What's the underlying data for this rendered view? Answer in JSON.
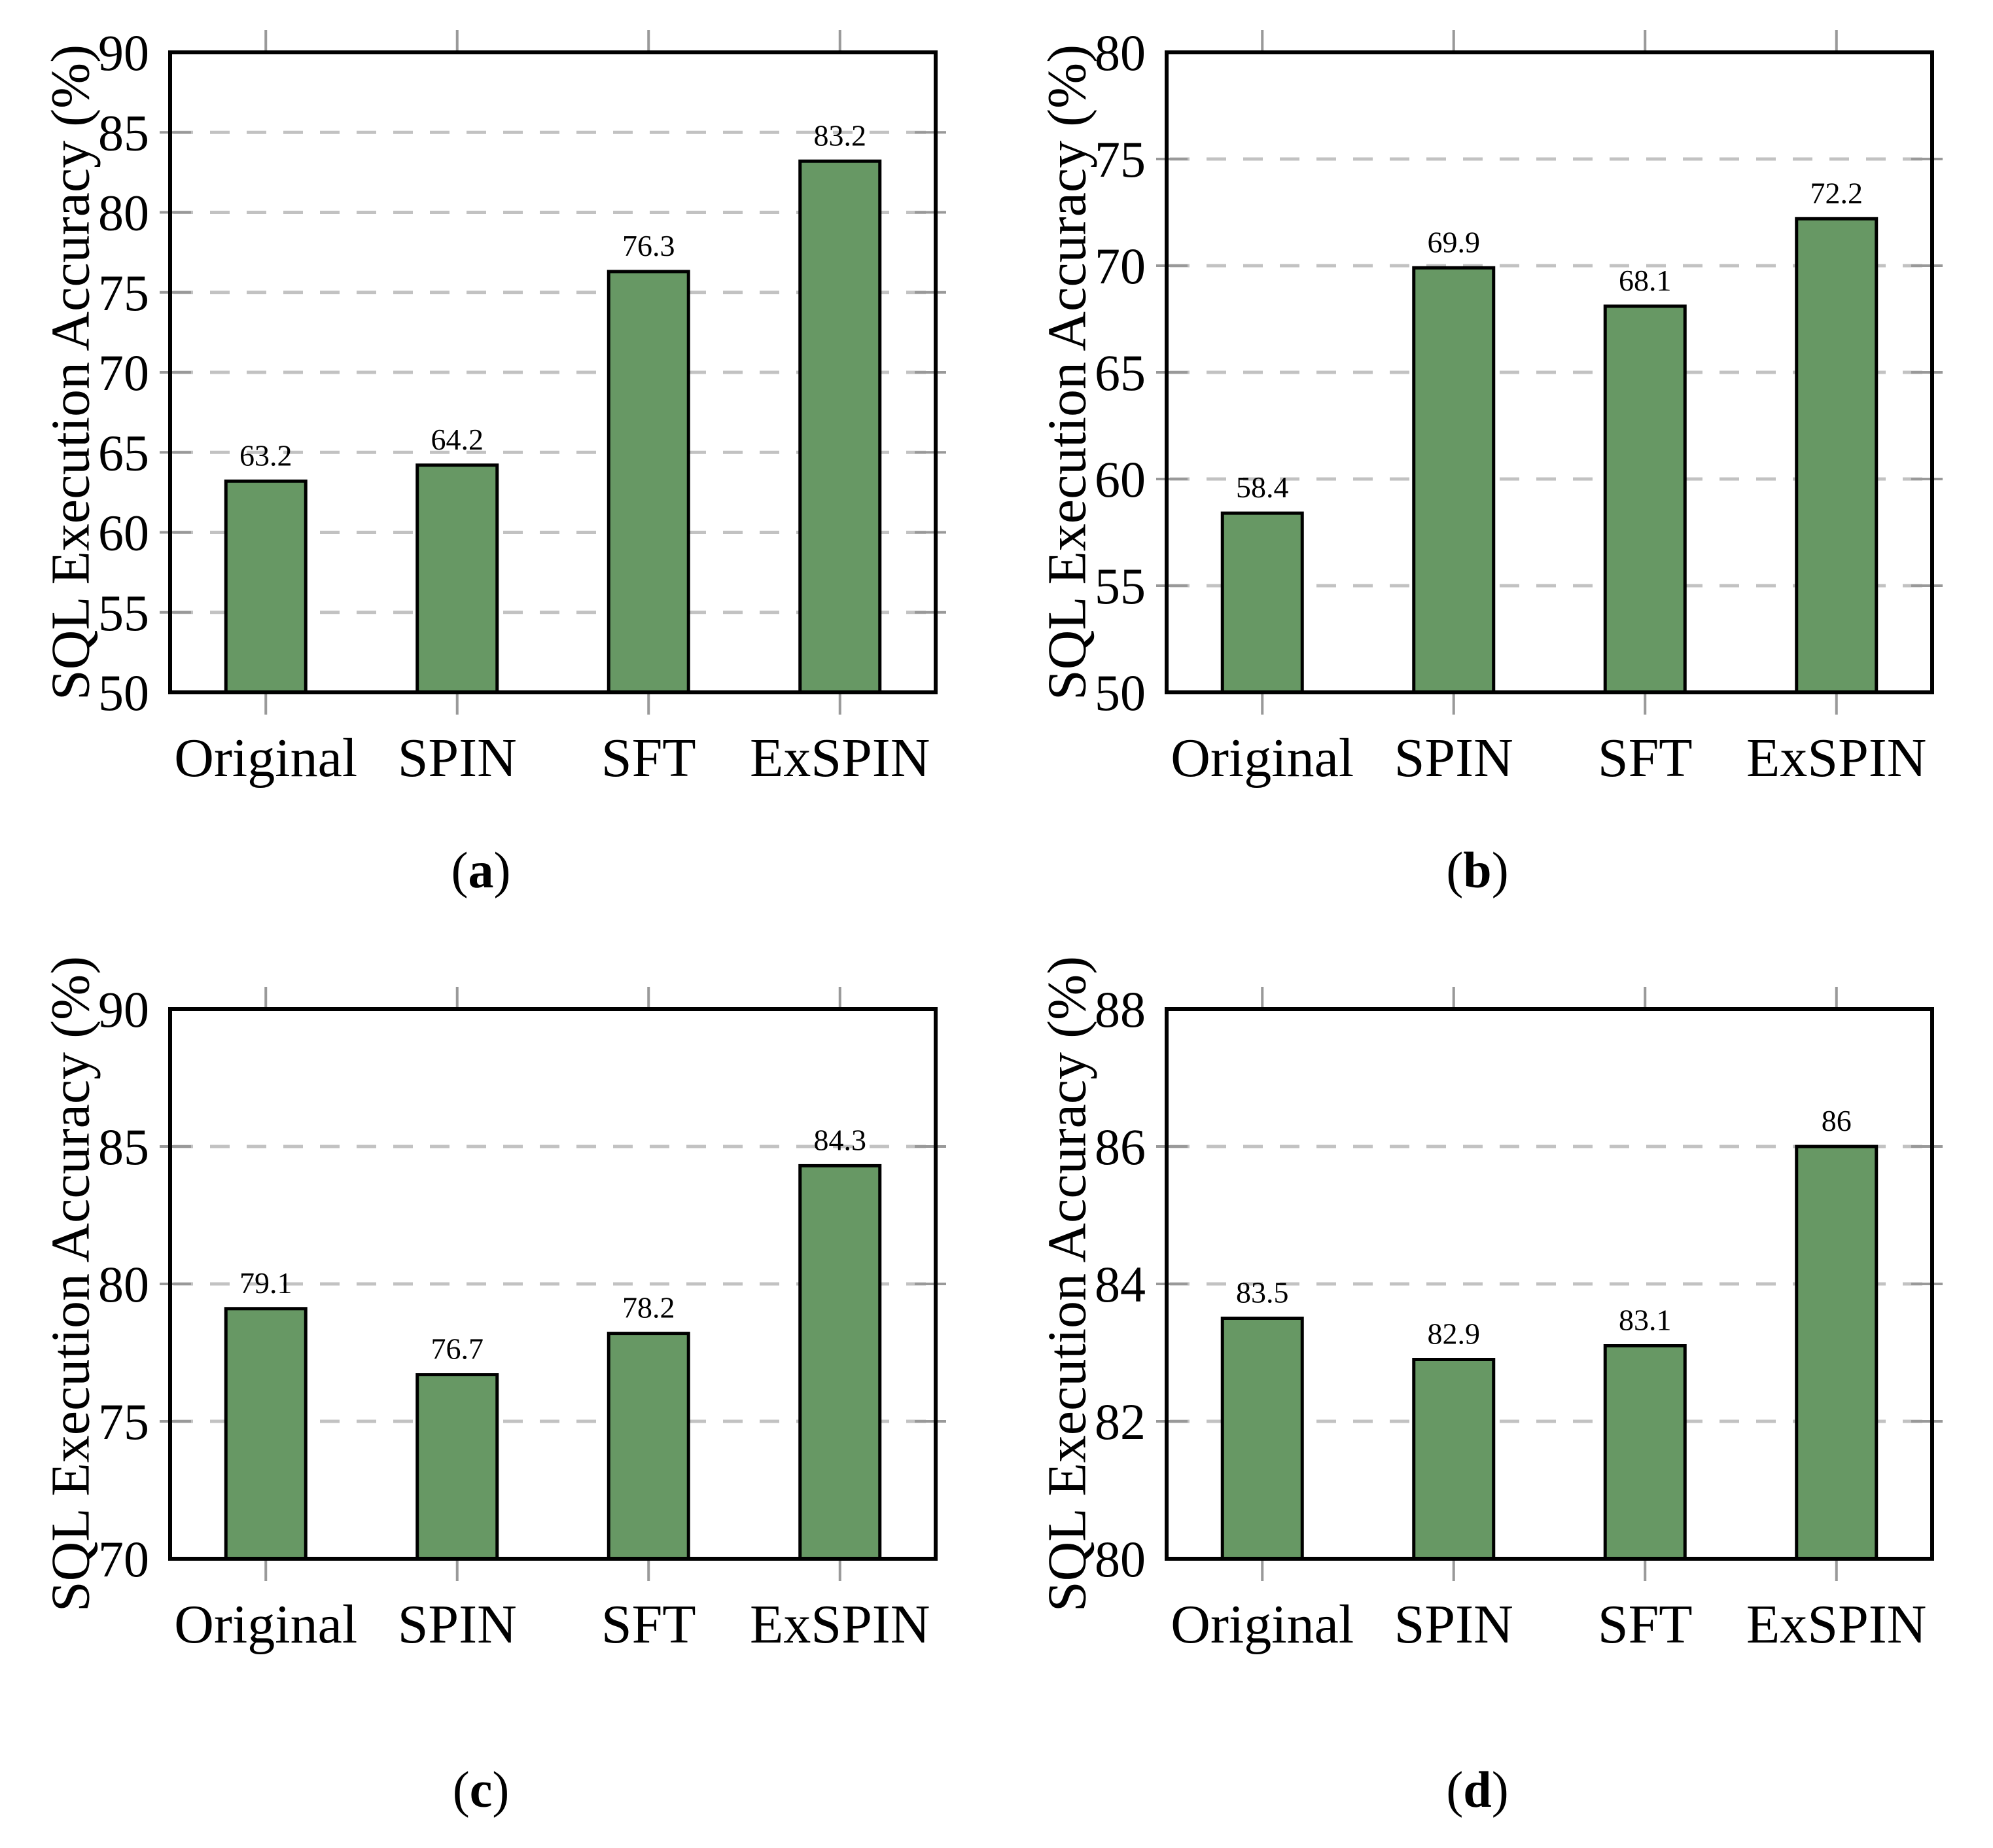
{
  "figure": {
    "caption_open": "(",
    "caption_close": ")",
    "colors": {
      "background": "#FFFFFF",
      "bar_fill": "#679864",
      "bar_border": "#000000",
      "gridline": "#C2C2C2",
      "tick": "#999999",
      "axis": "#000000"
    }
  },
  "chart_data": [
    {
      "type": "bar",
      "panel": "a",
      "caption": "a",
      "ylabel": "SQL Execution Accuracy (%)",
      "xlabel": "",
      "title": "",
      "legend": null,
      "grid": "horizontal-dashed",
      "categories": [
        "Original",
        "SPIN",
        "SFT",
        "ExSPIN"
      ],
      "values": [
        63.2,
        64.2,
        76.3,
        83.2
      ],
      "value_labels": [
        "63.2",
        "64.2",
        "76.3",
        "83.2"
      ],
      "ylim": [
        50,
        90
      ],
      "yticks": [
        50,
        55,
        60,
        65,
        70,
        75,
        80,
        85,
        90
      ],
      "ytick_labels": [
        "50",
        "55",
        "60",
        "65",
        "70",
        "75",
        "80",
        "85",
        "90"
      ]
    },
    {
      "type": "bar",
      "panel": "b",
      "caption": "b",
      "ylabel": "SQL Execution Accuracy (%)",
      "xlabel": "",
      "title": "",
      "legend": null,
      "grid": "horizontal-dashed",
      "categories": [
        "Original",
        "SPIN",
        "SFT",
        "ExSPIN"
      ],
      "values": [
        58.4,
        69.9,
        68.1,
        72.2
      ],
      "value_labels": [
        "58.4",
        "69.9",
        "68.1",
        "72.2"
      ],
      "ylim": [
        50,
        80
      ],
      "yticks": [
        50,
        55,
        60,
        65,
        70,
        75,
        80
      ],
      "ytick_labels": [
        "50",
        "55",
        "60",
        "65",
        "70",
        "75",
        "80"
      ]
    },
    {
      "type": "bar",
      "panel": "c",
      "caption": "c",
      "ylabel": "SQL Execution Accuracy (%)",
      "xlabel": "",
      "title": "",
      "legend": null,
      "grid": "horizontal-dashed",
      "categories": [
        "Original",
        "SPIN",
        "SFT",
        "ExSPIN"
      ],
      "values": [
        79.1,
        76.7,
        78.2,
        84.3
      ],
      "value_labels": [
        "79.1",
        "76.7",
        "78.2",
        "84.3"
      ],
      "ylim": [
        70,
        90
      ],
      "yticks": [
        70,
        75,
        80,
        85,
        90
      ],
      "ytick_labels": [
        "70",
        "75",
        "80",
        "85",
        "90"
      ]
    },
    {
      "type": "bar",
      "panel": "d",
      "caption": "d",
      "ylabel": "SQL Execution Accuracy (%)",
      "xlabel": "",
      "title": "",
      "legend": null,
      "grid": "horizontal-dashed",
      "categories": [
        "Original",
        "SPIN",
        "SFT",
        "ExSPIN"
      ],
      "values": [
        83.5,
        82.9,
        83.1,
        86
      ],
      "value_labels": [
        "83.5",
        "82.9",
        "83.1",
        "86"
      ],
      "ylim": [
        80,
        88
      ],
      "yticks": [
        80,
        82,
        84,
        86,
        88
      ],
      "ytick_labels": [
        "80",
        "82",
        "84",
        "86",
        "88"
      ]
    }
  ]
}
